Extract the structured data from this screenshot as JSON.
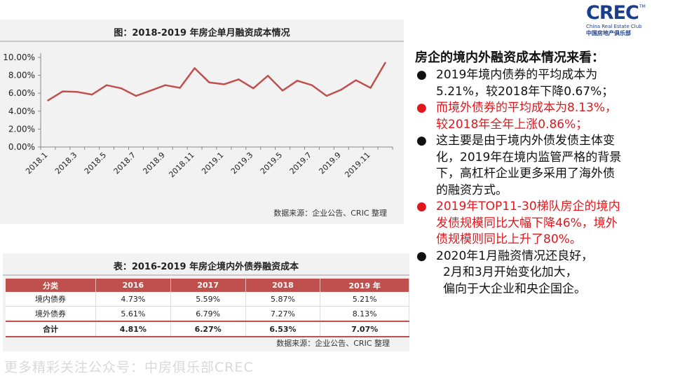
{
  "logo": {
    "main": "CREC",
    "tm": "TM",
    "sub": "China Real Estate Club",
    "cn": "中国房地产俱乐部"
  },
  "chart": {
    "title": "图：2018-2019 年房企单月融资成本情况",
    "source": "数据来源：企业公告、CRIC 整理"
  },
  "chart_data": {
    "type": "line",
    "x": [
      "2018.1",
      "2018.2",
      "2018.3",
      "2018.4",
      "2018.5",
      "2018.6",
      "2018.7",
      "2018.8",
      "2018.9",
      "2018.10",
      "2018.11",
      "2018.12",
      "2019.1",
      "2019.2",
      "2019.3",
      "2019.4",
      "2019.5",
      "2019.6",
      "2019.7",
      "2019.8",
      "2019.9",
      "2019.10",
      "2019.11",
      "2019.12"
    ],
    "x_tick_labels": [
      "2018.1",
      "2018.3",
      "2018.5",
      "2018.7",
      "2018.9",
      "2018.11",
      "2019.1",
      "2019.3",
      "2019.5",
      "2019.7",
      "2019.9",
      "2019.11"
    ],
    "series": [
      {
        "values": [
          5.2,
          6.2,
          6.15,
          5.85,
          6.9,
          6.55,
          5.7,
          6.3,
          6.9,
          6.6,
          8.8,
          7.2,
          7.0,
          7.55,
          6.55,
          7.95,
          6.3,
          7.4,
          6.9,
          5.7,
          6.4,
          7.45,
          6.6,
          9.4
        ]
      }
    ],
    "y_tick_labels": [
      "0.00%",
      "2.00%",
      "4.00%",
      "6.00%",
      "8.00%",
      "10.00%"
    ],
    "ylim": [
      0,
      10
    ],
    "grid": false,
    "color": "#c0504d"
  },
  "table": {
    "title": "表：2016-2019 年房企境内外债券融资成本",
    "headers": [
      "分类",
      "2016",
      "2017",
      "2018",
      "2019 年"
    ],
    "rows": [
      [
        "境内债券",
        "4.73%",
        "5.59%",
        "5.87%",
        "5.21%"
      ],
      [
        "境外债券",
        "5.61%",
        "6.79%",
        "7.27%",
        "8.13%"
      ],
      [
        "合计",
        "4.81%",
        "6.27%",
        "6.53%",
        "7.07%"
      ]
    ],
    "source": "数据来源：企业公告、CRIC 整理"
  },
  "text": {
    "heading": "房企的境内外融资成本情况来看：",
    "bullets": [
      {
        "lines": [
          "2019年境内债券的平均成本为",
          "5.21%，较2018年下降0.67%；"
        ],
        "color": "#111111"
      },
      {
        "lines": [
          "而境外债券的平均成本为8.13%，",
          "较2018年全年上涨0.86%；"
        ],
        "color": "#e2171d"
      },
      {
        "lines": [
          "这主要是由于境内外债发债主体变",
          "化，2019年在境内监管严格的背景",
          "下，高杠杆企业更多采用了海外债",
          "的融资方式。"
        ],
        "color": "#111111"
      },
      {
        "lines": [
          "2019年TOP11-30梯队房企的境内",
          "发债规模同比大幅下降46%，境外",
          "债规模则同比上升了80%。"
        ],
        "color": "#e2171d"
      },
      {
        "lines": [
          "2020年1月融资情况还良好，",
          "2月和3月开始变化加大，",
          "偏向于大企业和央企国企。"
        ],
        "color": "#111111"
      }
    ],
    "bullet_symbol": "●"
  },
  "watermark": "更多精彩关注公众号：中房俱乐部CREC"
}
